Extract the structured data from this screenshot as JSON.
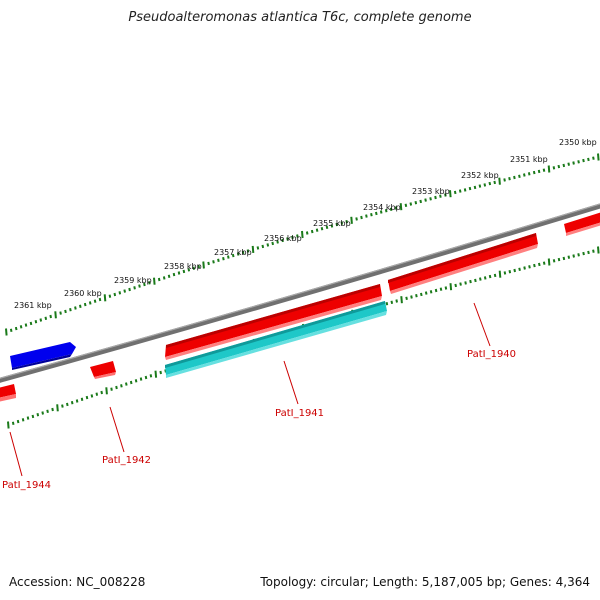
{
  "title": "Pseudoalteromonas atlantica T6c, complete genome",
  "footer": {
    "accession": "Accession: NC_008228",
    "summary": "Topology: circular; Length: 5,187,005 bp; Genes: 4,364"
  },
  "colors": {
    "backbone": "#808080",
    "forward_gene": "#ee0000",
    "reverse_gene": "#0000ee",
    "cds_teal": "#1ec8c8",
    "tick": "#1a7a1a",
    "gene_label": "#cc0000"
  },
  "scale": {
    "labels": [
      "2350 kbp",
      "2351 kbp",
      "2352 kbp",
      "2353 kbp",
      "2354 kbp",
      "2355 kbp",
      "2356 kbp",
      "2357 kbp",
      "2358 kbp",
      "2359 kbp",
      "2360 kbp",
      "2361 kbp"
    ]
  },
  "genes": [
    {
      "name": "PatI_1940"
    },
    {
      "name": "PatI_1941"
    },
    {
      "name": "PatI_1942"
    },
    {
      "name": "PatI_1944"
    }
  ]
}
